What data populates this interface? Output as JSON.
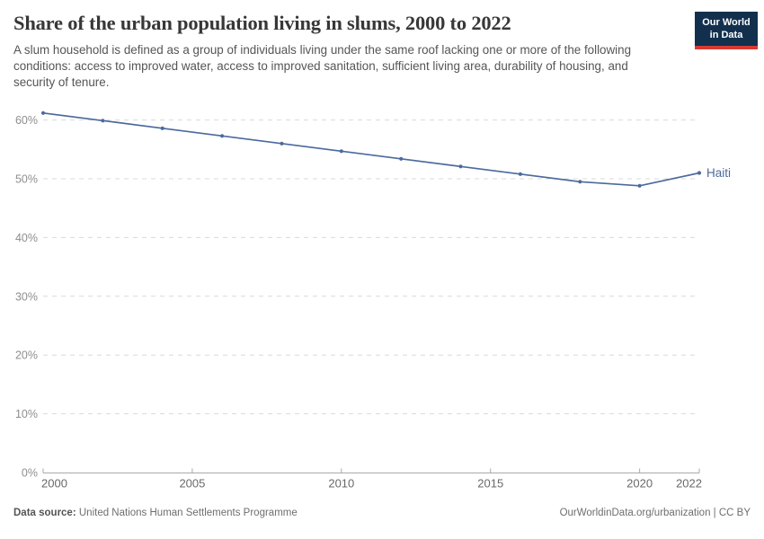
{
  "header": {
    "title": "Share of the urban population living in slums, 2000 to 2022",
    "subtitle": "A slum household is defined as a group of individuals living under the same roof lacking one or more of the following conditions: access to improved water, access to improved sanitation, sufficient living area, durability of housing, and security of tenure.",
    "logo": {
      "line1": "Our World",
      "line2": "in Data"
    }
  },
  "chart_data": {
    "type": "line",
    "title": "Share of the urban population living in slums, 2000 to 2022",
    "x": [
      2000,
      2002,
      2004,
      2006,
      2008,
      2010,
      2012,
      2014,
      2016,
      2018,
      2020,
      2022
    ],
    "series": [
      {
        "name": "Haiti",
        "values": [
          61.2,
          59.9,
          58.6,
          57.3,
          56.0,
          54.7,
          53.4,
          52.1,
          50.8,
          49.5,
          48.8,
          51.0
        ]
      }
    ],
    "xlabel": "",
    "ylabel": "",
    "xlim": [
      2000,
      2022
    ],
    "ylim": [
      0,
      65
    ],
    "x_ticks": [
      2000,
      2005,
      2010,
      2015,
      2020,
      2022
    ],
    "y_ticks": [
      0,
      10,
      20,
      30,
      40,
      50,
      60
    ],
    "y_tick_suffix": "%",
    "grid": "horizontal-dashed",
    "legend": "end-of-line-label"
  },
  "colors": {
    "line": "#4C6A9C",
    "grid": "#d9d9d9",
    "axis": "#a9a9a9",
    "y_tick_label": "#8e8e8e",
    "x_tick_label": "#696969",
    "logo_bg": "#12304E",
    "logo_stripe": "#D63A32"
  },
  "footer": {
    "source_label": "Data source:",
    "source_text": " United Nations Human Settlements Programme",
    "credit_text": "OurWorldinData.org/urbanization | CC BY"
  }
}
